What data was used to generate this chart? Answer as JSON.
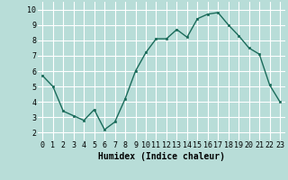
{
  "x": [
    0,
    1,
    2,
    3,
    4,
    5,
    6,
    7,
    8,
    9,
    10,
    11,
    12,
    13,
    14,
    15,
    16,
    17,
    18,
    19,
    20,
    21,
    22,
    23
  ],
  "y": [
    5.7,
    5.0,
    3.4,
    3.1,
    2.8,
    3.5,
    2.2,
    2.7,
    4.2,
    6.0,
    7.2,
    8.1,
    8.1,
    8.7,
    8.2,
    9.4,
    9.7,
    9.8,
    9.0,
    8.3,
    7.5,
    7.1,
    5.1,
    4.0
  ],
  "xlabel": "Humidex (Indice chaleur)",
  "xlim": [
    -0.5,
    23.5
  ],
  "ylim": [
    1.5,
    10.5
  ],
  "yticks": [
    2,
    3,
    4,
    5,
    6,
    7,
    8,
    9,
    10
  ],
  "xticks": [
    0,
    1,
    2,
    3,
    4,
    5,
    6,
    7,
    8,
    9,
    10,
    11,
    12,
    13,
    14,
    15,
    16,
    17,
    18,
    19,
    20,
    21,
    22,
    23
  ],
  "line_color": "#1a6b5a",
  "marker_color": "#1a6b5a",
  "bg_color": "#b8ddd8",
  "grid_color": "#ffffff",
  "xlabel_fontsize": 7,
  "tick_fontsize": 6,
  "title": ""
}
